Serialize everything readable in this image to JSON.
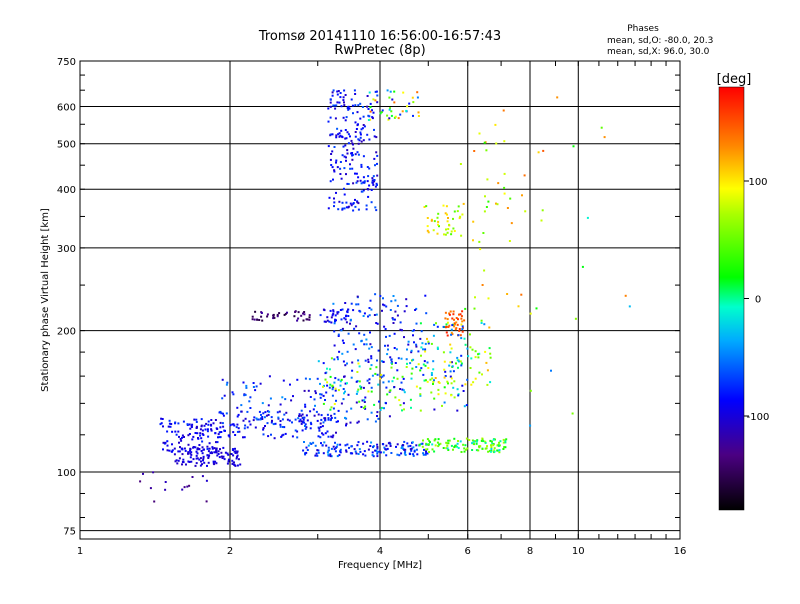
{
  "chart_data": {
    "type": "scatter",
    "title": "Tromsø 20141110 16:56:00-16:57:43",
    "subtitle": "RwPretec (8p)",
    "xlabel": "Frequency [MHz]",
    "ylabel": "Stationary phase Virtual Height [km]",
    "x_scale": "log",
    "y_scale": "log",
    "xlim": [
      1,
      16
    ],
    "ylim": [
      72,
      750
    ],
    "x_ticks": [
      1,
      2,
      4,
      6,
      8,
      10,
      16
    ],
    "x_tick_labels": [
      "1",
      "2",
      "4",
      "6",
      "8",
      "10",
      "16"
    ],
    "y_ticks": [
      75,
      100,
      200,
      300,
      400,
      500,
      600,
      750
    ],
    "y_tick_labels": [
      "75",
      "100",
      "200",
      "300",
      "400",
      "500",
      "600",
      "750"
    ],
    "grid": true,
    "phases_box": {
      "heading": "Phases",
      "line1": "mean, sd,O: -80.0, 20.3",
      "line2": "mean, sd,X:  96.0, 30.0"
    },
    "colorbar": {
      "label": "[deg]",
      "range": [
        -180,
        180
      ],
      "ticks": [
        100,
        0,
        -100
      ],
      "tick_labels": [
        "100",
        "0",
        "-100"
      ]
    },
    "clusters": [
      {
        "x": [
          1.55,
          2.1
        ],
        "y": [
          103,
          113
        ],
        "phase": [
          -110,
          -90
        ],
        "n": 120
      },
      {
        "x": [
          1.45,
          1.9
        ],
        "y": [
          110,
          130
        ],
        "phase": [
          -110,
          -70
        ],
        "n": 110
      },
      {
        "x": [
          1.9,
          3.3
        ],
        "y": [
          118,
          135
        ],
        "phase": [
          -110,
          -60
        ],
        "n": 130
      },
      {
        "x": [
          2.8,
          5.0
        ],
        "y": [
          108,
          116
        ],
        "phase": [
          -110,
          -40
        ],
        "n": 150
      },
      {
        "x": [
          4.8,
          7.2
        ],
        "y": [
          110,
          118
        ],
        "phase": [
          -20,
          80
        ],
        "n": 120
      },
      {
        "x": [
          1.9,
          4.2
        ],
        "y": [
          125,
          160
        ],
        "phase": [
          -115,
          -40
        ],
        "n": 140
      },
      {
        "x": [
          3.0,
          6.0
        ],
        "y": [
          135,
          175
        ],
        "phase": [
          -110,
          100
        ],
        "n": 160
      },
      {
        "x": [
          3.2,
          5.0
        ],
        "y": [
          170,
          240
        ],
        "phase": [
          -115,
          -40
        ],
        "n": 140
      },
      {
        "x": [
          2.2,
          2.9
        ],
        "y": [
          210,
          220
        ],
        "phase": [
          -160,
          -120
        ],
        "n": 40
      },
      {
        "x": [
          3.0,
          3.5
        ],
        "y": [
          208,
          222
        ],
        "phase": [
          -110,
          -70
        ],
        "n": 30
      },
      {
        "x": [
          5.4,
          5.9
        ],
        "y": [
          195,
          220
        ],
        "phase": [
          120,
          170
        ],
        "n": 40
      },
      {
        "x": [
          4.8,
          6.8
        ],
        "y": [
          150,
          210
        ],
        "phase": [
          -80,
          120
        ],
        "n": 90
      },
      {
        "x": [
          3.15,
          3.95
        ],
        "y": [
          360,
          650
        ],
        "phase": [
          -115,
          -60
        ],
        "n": 230
      },
      {
        "x": [
          3.8,
          4.8
        ],
        "y": [
          560,
          650
        ],
        "phase": [
          -110,
          150
        ],
        "n": 40
      },
      {
        "x": [
          4.9,
          5.9
        ],
        "y": [
          320,
          370
        ],
        "phase": [
          40,
          120
        ],
        "n": 40
      },
      {
        "x": [
          5.8,
          8.5
        ],
        "y": [
          200,
          600
        ],
        "phase": [
          20,
          150
        ],
        "n": 50
      },
      {
        "x": [
          1.3,
          1.8
        ],
        "y": [
          85,
          100
        ],
        "phase": [
          -140,
          -100
        ],
        "n": 15
      },
      {
        "x": [
          8.0,
          13.0
        ],
        "y": [
          120,
          640
        ],
        "phase": [
          -60,
          160
        ],
        "n": 14
      }
    ],
    "seed": 7
  }
}
